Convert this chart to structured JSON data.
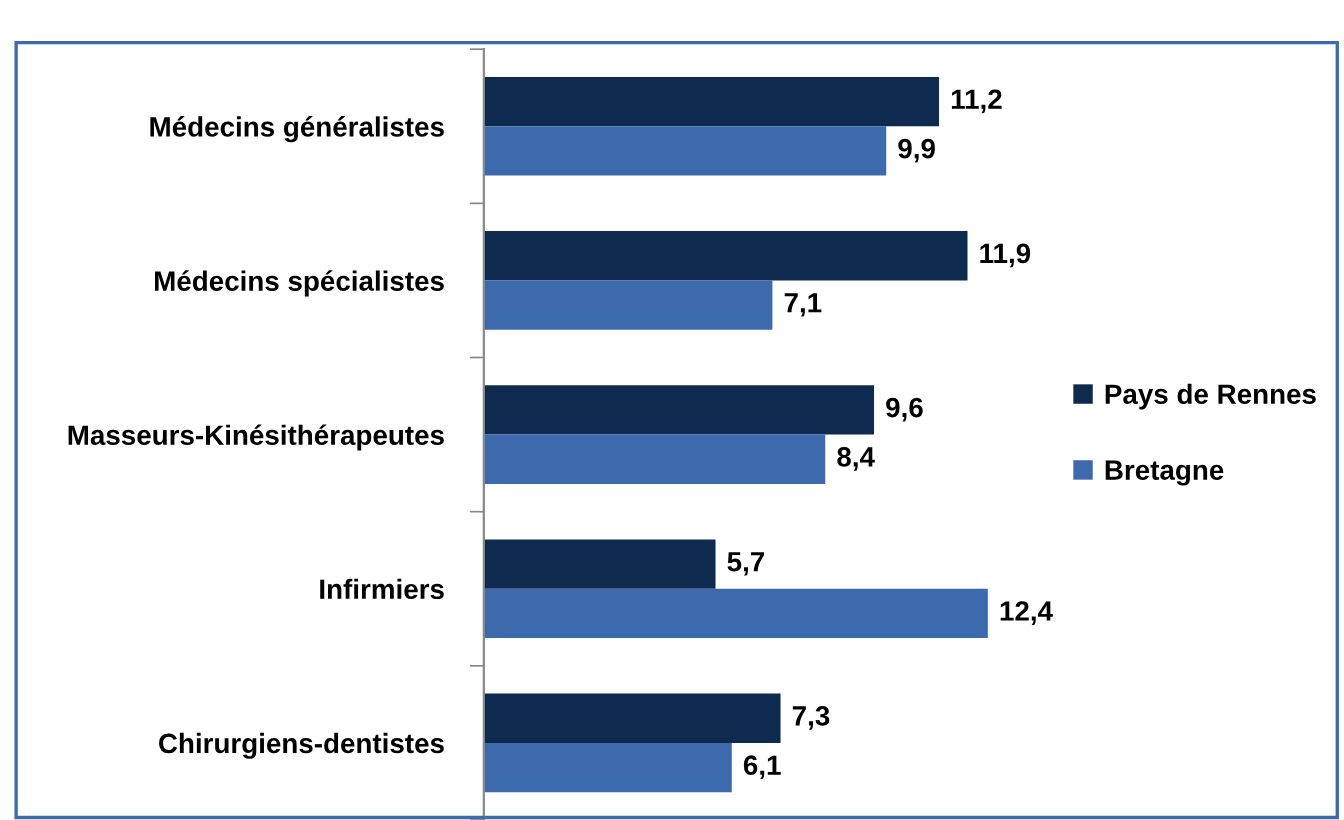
{
  "chart_data": {
    "type": "bar",
    "orientation": "horizontal",
    "categories": [
      "Médecins généralistes",
      "Médecins spécialistes",
      "Masseurs-Kinésithérapeutes",
      "Infirmiers",
      "Chirurgiens-dentistes"
    ],
    "series": [
      {
        "name": "Pays de Rennes",
        "color": "#0f2a4f",
        "values": [
          11.2,
          11.9,
          9.6,
          5.7,
          7.3
        ],
        "value_labels": [
          "11,2",
          "11,9",
          "9,6",
          "5,7",
          "7,3"
        ]
      },
      {
        "name": "Bretagne",
        "color": "#3d6aad",
        "values": [
          9.9,
          7.1,
          8.4,
          12.4,
          6.1
        ],
        "value_labels": [
          "9,9",
          "7,1",
          "8,4",
          "12,4",
          "6,1"
        ]
      }
    ],
    "legend": "right",
    "grid": false
  }
}
